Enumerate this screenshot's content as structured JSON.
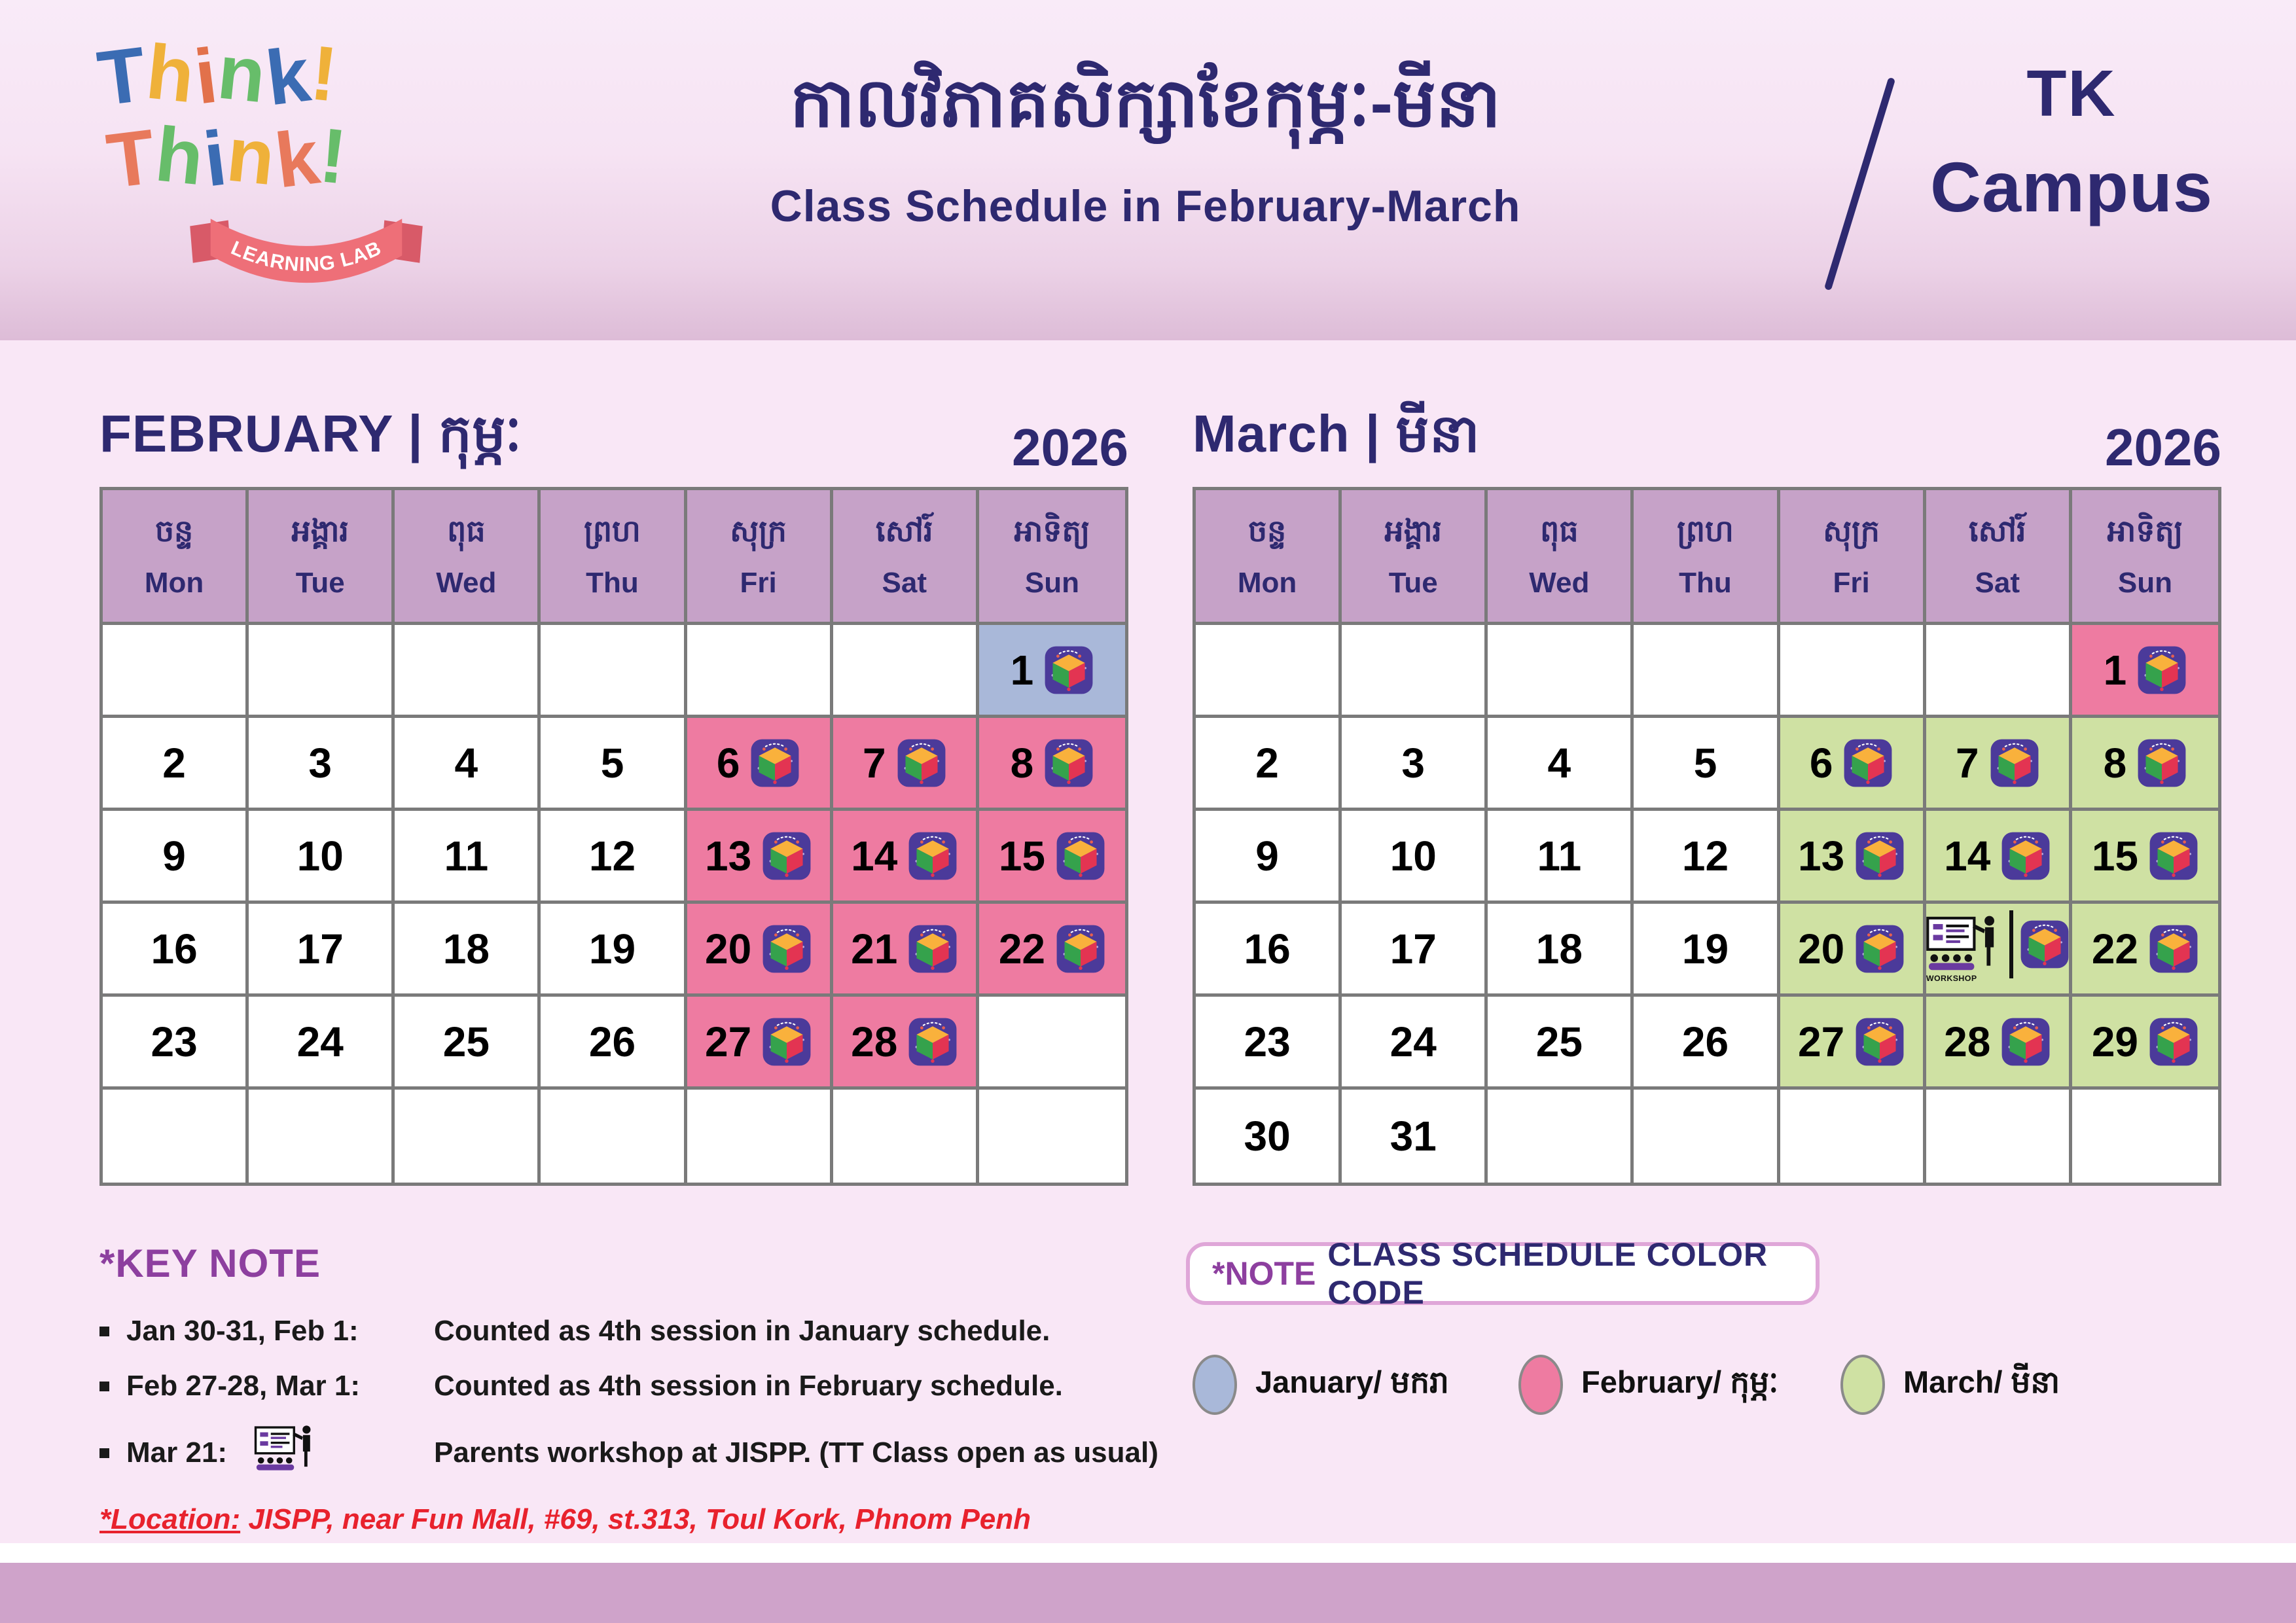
{
  "logo": {
    "lines": [
      {
        "text": "Think!",
        "colors": [
          "#3b6cb3",
          "#efb13a",
          "#e2714b",
          "#67bd6a",
          "#3b6cb3",
          "#efb13a"
        ]
      },
      {
        "text": "Think!",
        "colors": [
          "#e8795c",
          "#67bd6a",
          "#3b6cb3",
          "#efb13a",
          "#e8795c",
          "#67bd6a"
        ]
      }
    ],
    "ribbon_label": "LEARNING LAB"
  },
  "header": {
    "title_khmer": "កាលវិភាគសិក្សាខែកុម្ភៈ-មីនា",
    "title_english": "Class Schedule in February-March",
    "campus_line1": "TK",
    "campus_line2": "Campus"
  },
  "day_headers": [
    {
      "km": "ចន្ទ",
      "en": "Mon"
    },
    {
      "km": "អង្គារ",
      "en": "Tue"
    },
    {
      "km": "ពុធ",
      "en": "Wed"
    },
    {
      "km": "ព្រហ",
      "en": "Thu"
    },
    {
      "km": "សុក្រ",
      "en": "Fri"
    },
    {
      "km": "សៅរ៍",
      "en": "Sat"
    },
    {
      "km": "អាទិត្យ",
      "en": "Sun"
    }
  ],
  "colors": {
    "jan": "#a9b8d9",
    "feb": "#ee7ba1",
    "mar": "#cfe1a3",
    "navy": "#2e2970",
    "purple_accent": "#8d3f9f",
    "location_red": "#e8222d",
    "day_header_bg": "#c6a2c8",
    "grid_line": "#7a7a7a",
    "footer_bar": "#cfa3ca"
  },
  "calendars": [
    {
      "id": "february",
      "title": "FEBRUARY | កុម្ភៈ",
      "year": "2026",
      "weeks": [
        [
          null,
          null,
          null,
          null,
          null,
          null,
          {
            "day": "1",
            "tag": "jan",
            "icon": true
          }
        ],
        [
          {
            "day": "2"
          },
          {
            "day": "3"
          },
          {
            "day": "4"
          },
          {
            "day": "5"
          },
          {
            "day": "6",
            "tag": "feb",
            "icon": true
          },
          {
            "day": "7",
            "tag": "feb",
            "icon": true
          },
          {
            "day": "8",
            "tag": "feb",
            "icon": true
          }
        ],
        [
          {
            "day": "9"
          },
          {
            "day": "10"
          },
          {
            "day": "11"
          },
          {
            "day": "12"
          },
          {
            "day": "13",
            "tag": "feb",
            "icon": true
          },
          {
            "day": "14",
            "tag": "feb",
            "icon": true
          },
          {
            "day": "15",
            "tag": "feb",
            "icon": true
          }
        ],
        [
          {
            "day": "16"
          },
          {
            "day": "17"
          },
          {
            "day": "18"
          },
          {
            "day": "19"
          },
          {
            "day": "20",
            "tag": "feb",
            "icon": true
          },
          {
            "day": "21",
            "tag": "feb",
            "icon": true
          },
          {
            "day": "22",
            "tag": "feb",
            "icon": true
          }
        ],
        [
          {
            "day": "23"
          },
          {
            "day": "24"
          },
          {
            "day": "25"
          },
          {
            "day": "26"
          },
          {
            "day": "27",
            "tag": "feb",
            "icon": true
          },
          {
            "day": "28",
            "tag": "feb",
            "icon": true
          },
          null
        ],
        [
          null,
          null,
          null,
          null,
          null,
          null,
          null
        ]
      ]
    },
    {
      "id": "march",
      "title": "March | មីនា",
      "year": "2026",
      "weeks": [
        [
          null,
          null,
          null,
          null,
          null,
          null,
          {
            "day": "1",
            "tag": "feb",
            "icon": true
          }
        ],
        [
          {
            "day": "2"
          },
          {
            "day": "3"
          },
          {
            "day": "4"
          },
          {
            "day": "5"
          },
          {
            "day": "6",
            "tag": "mar",
            "icon": true
          },
          {
            "day": "7",
            "tag": "mar",
            "icon": true
          },
          {
            "day": "8",
            "tag": "mar",
            "icon": true
          }
        ],
        [
          {
            "day": "9"
          },
          {
            "day": "10"
          },
          {
            "day": "11"
          },
          {
            "day": "12"
          },
          {
            "day": "13",
            "tag": "mar",
            "icon": true
          },
          {
            "day": "14",
            "tag": "mar",
            "icon": true
          },
          {
            "day": "15",
            "tag": "mar",
            "icon": true
          }
        ],
        [
          {
            "day": "16"
          },
          {
            "day": "17"
          },
          {
            "day": "18"
          },
          {
            "day": "19"
          },
          {
            "day": "20",
            "tag": "mar",
            "icon": true
          },
          {
            "day": "21",
            "tag": "mar",
            "icon": true,
            "workshop": true,
            "day_hidden": true,
            "workshop_label": "WORKSHOP"
          },
          {
            "day": "22",
            "tag": "mar",
            "icon": true
          }
        ],
        [
          {
            "day": "23"
          },
          {
            "day": "24"
          },
          {
            "day": "25"
          },
          {
            "day": "26"
          },
          {
            "day": "27",
            "tag": "mar",
            "icon": true
          },
          {
            "day": "28",
            "tag": "mar",
            "icon": true
          },
          {
            "day": "29",
            "tag": "mar",
            "icon": true
          }
        ],
        [
          {
            "day": "30"
          },
          {
            "day": "31"
          },
          null,
          null,
          null,
          null,
          null
        ]
      ]
    }
  ],
  "keynote": {
    "heading": "*KEY NOTE",
    "items": [
      {
        "label": "Jan 30-31, Feb 1:",
        "text": "Counted as 4th session in January schedule."
      },
      {
        "label": "Feb 27-28, Mar 1:",
        "text": "Counted as 4th session in February schedule."
      },
      {
        "label": "Mar 21:",
        "icon": "workshop-icon",
        "text": "Parents workshop at JISPP.  (TT Class open as usual)"
      }
    ],
    "location_label": "*Location:",
    "location_text": "JISPP, near Fun Mall, #69, st.313, Toul Kork, Phnom Penh"
  },
  "color_note": {
    "prefix": "*NOTE",
    "text": "CLASS SCHEDULE COLOR CODE"
  },
  "legend": [
    {
      "label": "January/ មករា",
      "color": "#a9b8d9"
    },
    {
      "label": "February/ កុម្ភៈ",
      "color": "#ee7ba1"
    },
    {
      "label": "March/ មីនា",
      "color": "#cfe1a3"
    }
  ]
}
